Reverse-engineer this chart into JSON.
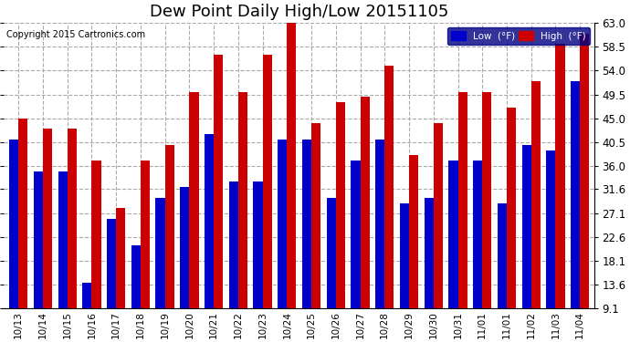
{
  "title": "Dew Point Daily High/Low 20151105",
  "copyright": "Copyright 2015 Cartronics.com",
  "legend_low": "Low  (°F)",
  "legend_high": "High  (°F)",
  "categories": [
    "10/13",
    "10/14",
    "10/15",
    "10/16",
    "10/17",
    "10/18",
    "10/19",
    "10/20",
    "10/21",
    "10/22",
    "10/23",
    "10/24",
    "10/25",
    "10/26",
    "10/27",
    "10/28",
    "10/29",
    "10/30",
    "10/31",
    "11/01",
    "11/01",
    "11/02",
    "11/03",
    "11/04"
  ],
  "low_values": [
    41,
    35,
    35,
    14,
    26,
    21,
    30,
    32,
    42,
    33,
    33,
    41,
    41,
    30,
    37,
    41,
    29,
    30,
    37,
    37,
    29,
    40,
    39,
    52
  ],
  "high_values": [
    45,
    43,
    43,
    37,
    28,
    37,
    40,
    50,
    57,
    50,
    57,
    63,
    44,
    48,
    49,
    55,
    38,
    44,
    50,
    50,
    47,
    52,
    59,
    61
  ],
  "low_color": "#0000cc",
  "high_color": "#cc0000",
  "bg_color": "#ffffff",
  "bar_width": 0.38,
  "bar_bottom": 9.1,
  "ylim_min": 9.1,
  "ylim_max": 63.0,
  "yticks": [
    9.1,
    13.6,
    18.1,
    22.6,
    27.1,
    31.6,
    36.0,
    40.5,
    45.0,
    49.5,
    54.0,
    58.5,
    63.0
  ],
  "grid_color": "#aaaaaa",
  "title_fontsize": 13
}
